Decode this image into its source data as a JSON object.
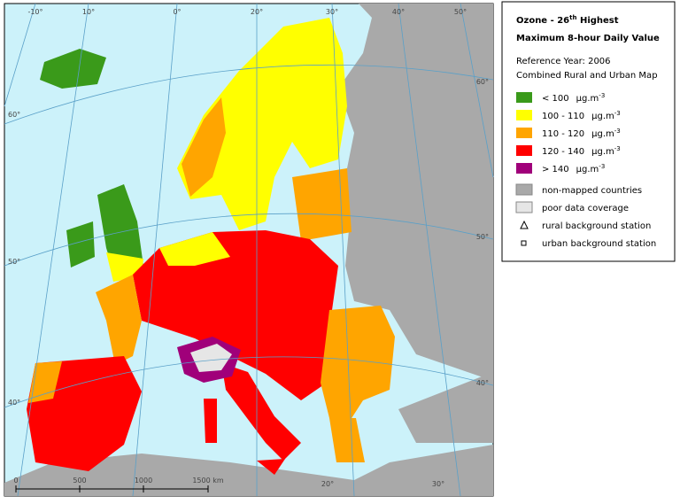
{
  "map": {
    "graticule_top": [
      "-10°",
      "10°",
      "0°",
      "20°",
      "30°",
      "40°",
      "50°"
    ],
    "graticule_right": [
      "60°",
      "50°",
      "40°"
    ],
    "graticule_left": [
      "60°",
      "50°",
      "40°"
    ],
    "graticule_bottom": [
      "20°",
      "30°"
    ],
    "scale": [
      "0",
      "500",
      "1000",
      "1500 km"
    ]
  },
  "legend": {
    "title_prefix": "Ozone - 26",
    "title_sup": "th",
    "title_suffix": " Highest",
    "title_line2": "Maximum 8-hour Daily Value",
    "reference": "Reference Year: 2006",
    "subtitle": "Combined Rural and Urban Map",
    "classes": [
      {
        "label": "<  100",
        "unit": "µg.m",
        "exp": "-3",
        "color": "#3a9a1a"
      },
      {
        "label": "100 - 110",
        "unit": "µg.m",
        "exp": "-3",
        "color": "#ffff00"
      },
      {
        "label": "110 - 120",
        "unit": "µg.m",
        "exp": "-3",
        "color": "#ffa500"
      },
      {
        "label": "120 - 140",
        "unit": "µg.m",
        "exp": "-3",
        "color": "#ff0000"
      },
      {
        "label": ">  140",
        "unit": "µg.m",
        "exp": "-3",
        "color": "#a0007a"
      }
    ],
    "areas": [
      {
        "label": "non-mapped countries",
        "color": "#a9a9a9"
      },
      {
        "label": "poor data coverage",
        "color": "#e6e6e6"
      }
    ],
    "stations": [
      {
        "label": "rural background station",
        "symbol": "triangle"
      },
      {
        "label": "urban background station",
        "symbol": "square"
      }
    ]
  }
}
